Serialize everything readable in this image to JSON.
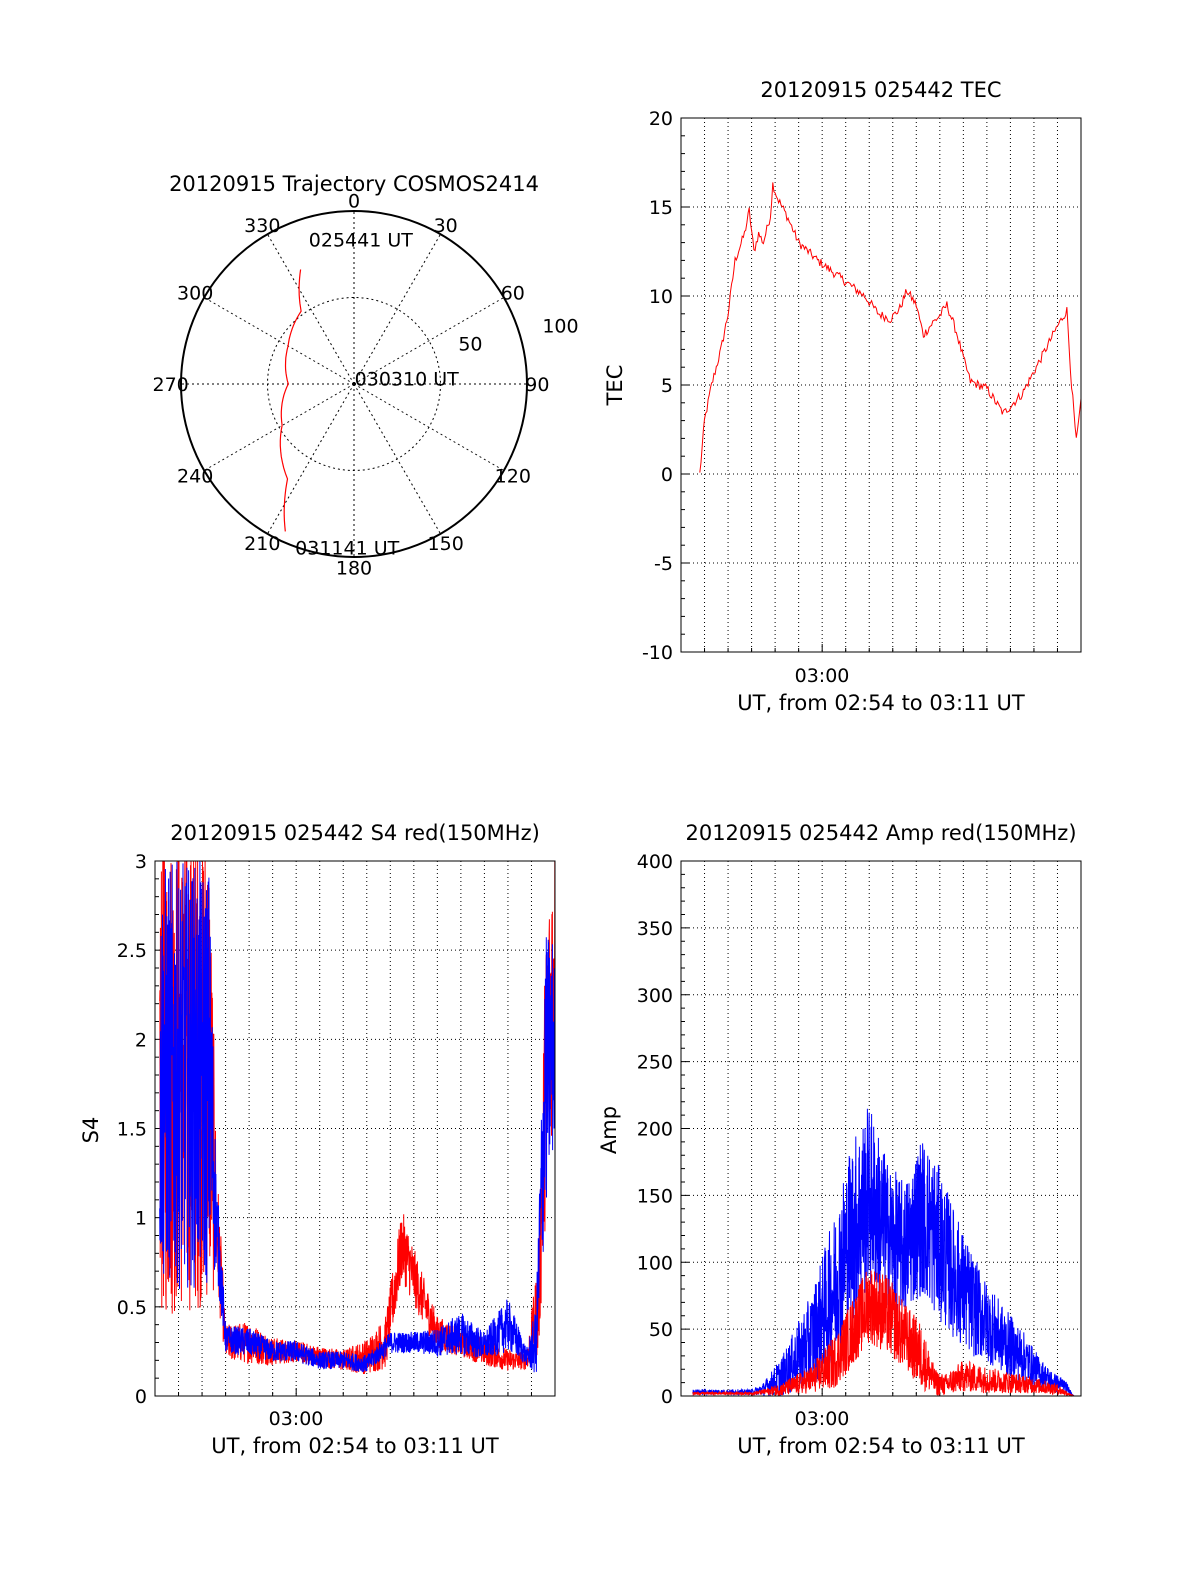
{
  "colors": {
    "red": "#ff0000",
    "blue": "#0000ff",
    "axis": "#000000",
    "grid": "#000000"
  },
  "chart_data": [
    {
      "id": "trajectory",
      "type": "polar",
      "title": "20120915 Trajectory COSMOS2414",
      "angle_labels": [
        "0",
        "30",
        "60",
        "90",
        "120",
        "150",
        "180",
        "210",
        "240",
        "270",
        "300",
        "330"
      ],
      "angle_values": [
        0,
        30,
        60,
        90,
        120,
        150,
        180,
        210,
        240,
        270,
        300,
        330
      ],
      "radius_labels": [
        "50",
        "100"
      ],
      "rlim": [
        0,
        100
      ],
      "grid": true,
      "track_color": "red",
      "track": [
        {
          "az": 335,
          "r": 73
        },
        {
          "az": 324,
          "r": 52
        },
        {
          "az": 300,
          "r": 44
        },
        {
          "az": 270,
          "r": 38
        },
        {
          "az": 240,
          "r": 48
        },
        {
          "az": 215,
          "r": 67
        },
        {
          "az": 205,
          "r": 94
        }
      ],
      "annotations": [
        {
          "text": "025441 UT",
          "az": 354,
          "r": 84
        },
        {
          "text": "030310 UT",
          "az": 80,
          "r": 18
        },
        {
          "text": "031141 UT",
          "az": 190,
          "r": 96
        }
      ]
    },
    {
      "id": "tec",
      "type": "line",
      "title": "20120915 025442 TEC",
      "xlabel": "UT, from 02:54 to 03:11 UT",
      "ylabel": "TEC",
      "x_tick_label": "03:00",
      "xlim_minutes": [
        0,
        17
      ],
      "x_tick_minute": 6,
      "ylim": [
        -10,
        20
      ],
      "y_ticks": [
        -10,
        -5,
        0,
        5,
        10,
        15,
        20
      ],
      "grid": true,
      "series": [
        {
          "color": "red",
          "x": [
            0.8,
            1.0,
            1.3,
            1.7,
            2.0,
            2.3,
            2.7,
            2.9,
            3.1,
            3.3,
            3.5,
            3.8,
            3.9,
            4.1,
            4.5,
            5.0,
            5.8,
            6.8,
            7.8,
            8.4,
            8.9,
            9.3,
            9.6,
            10.0,
            10.3,
            10.7,
            11.0,
            11.3,
            11.7,
            12.0,
            12.3,
            13.0,
            13.7,
            14.5,
            15.3,
            16.0,
            16.4,
            16.6,
            16.8,
            17.0
          ],
          "y": [
            0.0,
            3.0,
            5.0,
            7.0,
            9.0,
            12.0,
            13.5,
            14.8,
            12.5,
            13.5,
            13.0,
            14.5,
            16.3,
            15.5,
            14.5,
            13.0,
            12.0,
            11.0,
            10.0,
            9.0,
            8.7,
            9.3,
            10.3,
            9.5,
            7.8,
            8.5,
            8.9,
            9.5,
            8.0,
            6.5,
            5.2,
            4.8,
            3.4,
            4.5,
            6.5,
            8.3,
            9.2,
            5.0,
            1.8,
            4.0
          ]
        }
      ]
    },
    {
      "id": "s4",
      "type": "line",
      "title": "20120915 025442 S4 red(150MHz)",
      "xlabel": "UT, from 02:54 to 03:11 UT",
      "ylabel": "S4",
      "x_tick_label": "03:00",
      "xlim_minutes": [
        0,
        17
      ],
      "x_tick_minute": 6,
      "ylim": [
        0,
        3
      ],
      "y_ticks": [
        0,
        0.5,
        1,
        1.5,
        2,
        2.5,
        3
      ],
      "y_tick_labels": [
        "0",
        "0.5",
        "1",
        "1.5",
        "2",
        "2.5",
        "3"
      ],
      "grid": true,
      "series": [
        {
          "color": "red",
          "x": [
            0.2,
            2.3,
            2.6,
            3.0,
            4.0,
            5.0,
            6.0,
            7.0,
            8.0,
            9.0,
            9.8,
            10.5,
            11.2,
            12.0,
            13.0,
            14.0,
            15.0,
            15.8,
            16.3,
            16.6,
            17.0
          ],
          "y": [
            1.8,
            1.9,
            1.0,
            0.3,
            0.3,
            0.25,
            0.25,
            0.22,
            0.2,
            0.22,
            0.3,
            0.85,
            0.6,
            0.35,
            0.3,
            0.25,
            0.2,
            0.2,
            0.5,
            1.8,
            2.5
          ],
          "noise": [
            1.4,
            1.4,
            0.4,
            0.1,
            0.12,
            0.08,
            0.06,
            0.06,
            0.06,
            0.1,
            0.15,
            0.2,
            0.15,
            0.1,
            0.08,
            0.08,
            0.06,
            0.05,
            0.3,
            0.8,
            0.8
          ]
        },
        {
          "color": "blue",
          "x": [
            0.2,
            2.3,
            2.6,
            3.0,
            4.0,
            5.0,
            6.0,
            7.0,
            8.0,
            9.0,
            10.0,
            11.0,
            12.0,
            13.0,
            14.0,
            15.0,
            15.8,
            16.2,
            16.6,
            17.0
          ],
          "y": [
            1.8,
            1.8,
            1.0,
            0.32,
            0.3,
            0.25,
            0.25,
            0.2,
            0.2,
            0.18,
            0.3,
            0.3,
            0.3,
            0.35,
            0.28,
            0.4,
            0.22,
            0.3,
            1.8,
            2.0
          ],
          "noise": [
            1.2,
            1.2,
            0.3,
            0.08,
            0.08,
            0.06,
            0.06,
            0.05,
            0.05,
            0.05,
            0.06,
            0.06,
            0.08,
            0.12,
            0.08,
            0.15,
            0.05,
            0.2,
            0.8,
            0.6
          ]
        }
      ]
    },
    {
      "id": "amp",
      "type": "line",
      "title": "20120915 025442 Amp red(150MHz)",
      "xlabel": "UT, from 02:54 to 03:11 UT",
      "ylabel": "Amp",
      "x_tick_label": "03:00",
      "xlim_minutes": [
        0,
        17
      ],
      "x_tick_minute": 6,
      "ylim": [
        0,
        400
      ],
      "y_ticks": [
        0,
        50,
        100,
        150,
        200,
        250,
        300,
        350,
        400
      ],
      "grid": true,
      "series": [
        {
          "color": "blue",
          "x": [
            0.5,
            3.0,
            3.5,
            4.3,
            5.5,
            6.5,
            7.2,
            8.0,
            8.8,
            9.5,
            10.2,
            10.8,
            11.5,
            12.3,
            13.0,
            13.8,
            14.5,
            15.2,
            15.8,
            16.3,
            16.7
          ],
          "y": [
            3,
            3,
            5,
            15,
            40,
            80,
            120,
            150,
            120,
            110,
            135,
            120,
            95,
            70,
            55,
            40,
            30,
            18,
            10,
            8,
            0
          ],
          "noise": [
            2,
            2,
            5,
            15,
            35,
            55,
            70,
            70,
            55,
            50,
            60,
            60,
            50,
            40,
            30,
            25,
            20,
            12,
            8,
            5,
            0
          ]
        },
        {
          "color": "red",
          "x": [
            0.5,
            3.0,
            3.5,
            4.3,
            5.5,
            6.5,
            7.2,
            8.0,
            8.8,
            9.5,
            10.2,
            10.8,
            11.2,
            12.0,
            13.0,
            14.0,
            15.0,
            16.0,
            16.7
          ],
          "y": [
            2,
            2,
            3,
            5,
            12,
            25,
            45,
            70,
            60,
            45,
            30,
            10,
            8,
            15,
            12,
            10,
            8,
            5,
            0
          ],
          "noise": [
            1,
            1,
            2,
            5,
            10,
            20,
            25,
            30,
            30,
            25,
            25,
            10,
            8,
            12,
            10,
            8,
            6,
            4,
            0
          ]
        }
      ]
    }
  ]
}
